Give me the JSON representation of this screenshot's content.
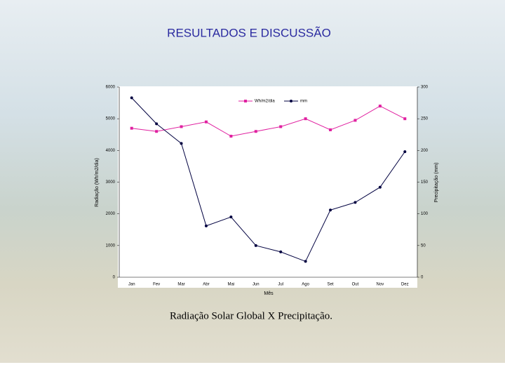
{
  "slide": {
    "title": "RESULTADOS E DISCUSSÃO",
    "caption": "Radiação Solar Global  X  Precipitação."
  },
  "chart_data": {
    "type": "line",
    "xlabel": "Mês",
    "ylabel": "Radiação (Wh/m2/dia)",
    "y2label": "Precipitação (mm)",
    "categories": [
      "Jan",
      "Fev",
      "Mar",
      "Abr",
      "Mai",
      "Jun",
      "Jul",
      "Ago",
      "Set",
      "Out",
      "Nov",
      "Dez"
    ],
    "series": [
      {
        "name": "Wh/m2/dia",
        "color": "#e020a0",
        "marker": "square",
        "values": [
          4700,
          4600,
          4750,
          4900,
          4450,
          4600,
          4750,
          5000,
          4650,
          4950,
          5400,
          5000
        ]
      },
      {
        "name": "mm",
        "color": "#000040",
        "marker": "circle",
        "axis": "y2",
        "values": [
          283,
          242,
          211,
          81,
          95,
          50,
          40,
          25,
          106,
          118,
          142,
          198
        ]
      }
    ],
    "ylim": [
      0,
      6000
    ],
    "yticks": [
      0,
      1000,
      2000,
      3000,
      4000,
      5000,
      6000
    ],
    "y2lim": [
      0,
      300
    ],
    "y2ticks": [
      0,
      50,
      100,
      150,
      200,
      250,
      300
    ],
    "legend": "top-right"
  }
}
